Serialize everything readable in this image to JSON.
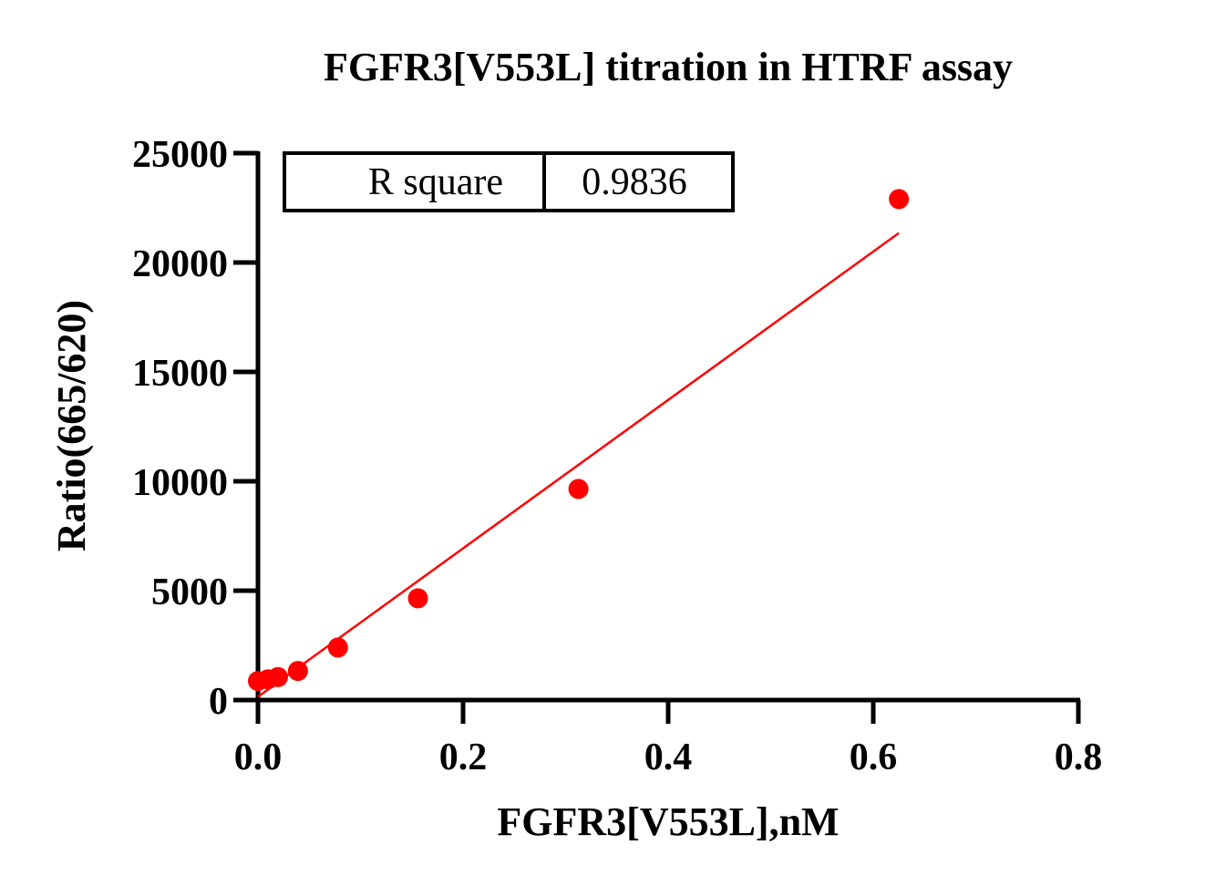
{
  "chart_data": {
    "type": "scatter",
    "title": "FGFR3[V553L] titration in HTRF assay",
    "xlabel": "FGFR3[V553L],nM",
    "ylabel": "Ratio(665/620)",
    "xlim": [
      0,
      0.8
    ],
    "ylim": [
      0,
      25000
    ],
    "x_ticks": [
      0.0,
      0.2,
      0.4,
      0.6,
      0.8
    ],
    "x_tick_labels": [
      "0.0",
      "0.2",
      "0.4",
      "0.6",
      "0.8"
    ],
    "y_ticks": [
      0,
      5000,
      10000,
      15000,
      20000,
      25000
    ],
    "y_tick_labels": [
      "0",
      "5000",
      "10000",
      "15000",
      "20000",
      "25000"
    ],
    "grid": false,
    "series": [
      {
        "points": [
          {
            "x": 0.0,
            "y": 870
          },
          {
            "x": 0.0098,
            "y": 950
          },
          {
            "x": 0.0195,
            "y": 1050
          },
          {
            "x": 0.039,
            "y": 1330
          },
          {
            "x": 0.078,
            "y": 2400
          },
          {
            "x": 0.156,
            "y": 4650
          },
          {
            "x": 0.3125,
            "y": 9650
          },
          {
            "x": 0.625,
            "y": 22900
          }
        ],
        "color": "#ff0000"
      }
    ],
    "fit_line": {
      "type": "linear",
      "x_range": [
        0.0,
        0.625
      ],
      "y_range": [
        150,
        21350
      ],
      "color": "#ff0000"
    },
    "stats_table": {
      "label": "R square",
      "value": "0.9836"
    }
  }
}
